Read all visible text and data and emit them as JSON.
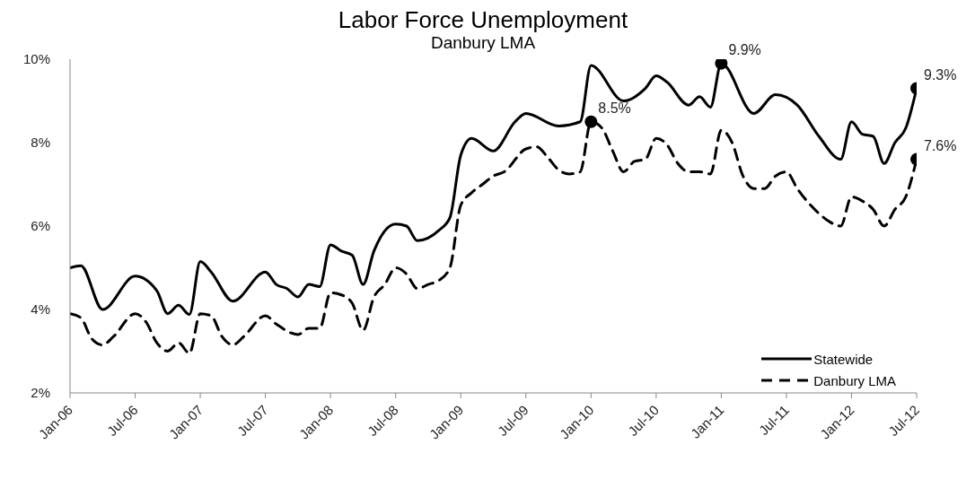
{
  "chart_data": {
    "type": "line",
    "title": "Labor Force Unemployment",
    "subtitle": "Danbury LMA",
    "xlim": [
      "2006-01",
      "2012-07"
    ],
    "xticks": [
      {
        "value": "2006-01",
        "label": "Jan-06"
      },
      {
        "value": "2006-07",
        "label": "Jul-06"
      },
      {
        "value": "2007-01",
        "label": "Jan-07"
      },
      {
        "value": "2007-07",
        "label": "Jul-07"
      },
      {
        "value": "2008-01",
        "label": "Jan-08"
      },
      {
        "value": "2008-07",
        "label": "Jul-08"
      },
      {
        "value": "2009-01",
        "label": "Jan-09"
      },
      {
        "value": "2009-07",
        "label": "Jul-09"
      },
      {
        "value": "2010-01",
        "label": "Jan-10"
      },
      {
        "value": "2010-07",
        "label": "Jul-10"
      },
      {
        "value": "2011-01",
        "label": "Jan-11"
      },
      {
        "value": "2011-07",
        "label": "Jul-11"
      },
      {
        "value": "2012-01",
        "label": "Jan-12"
      },
      {
        "value": "2012-07",
        "label": "Jul-12"
      }
    ],
    "ylim": [
      2,
      10
    ],
    "yticks": [
      {
        "value": 2,
        "label": "2%"
      },
      {
        "value": 4,
        "label": "4%"
      },
      {
        "value": 6,
        "label": "6%"
      },
      {
        "value": 8,
        "label": "8%"
      },
      {
        "value": 10,
        "label": "10%"
      }
    ],
    "grid": false,
    "legend": "bottom right",
    "marker": "none",
    "series": [
      {
        "name": "Statewide",
        "color": "#000000",
        "line_style": "solid",
        "x": [
          "2006-01",
          "2006-02",
          "2006-04",
          "2006-07",
          "2006-09",
          "2006-10",
          "2006-11",
          "2006-12",
          "2007-01",
          "2007-02",
          "2007-04",
          "2007-07",
          "2007-08",
          "2007-09",
          "2007-10",
          "2007-11",
          "2007-12",
          "2008-01",
          "2008-02",
          "2008-03",
          "2008-04",
          "2008-05",
          "2008-07",
          "2008-08",
          "2008-09",
          "2008-11",
          "2008-12",
          "2009-01",
          "2009-02",
          "2009-04",
          "2009-06",
          "2009-07",
          "2009-10",
          "2009-12",
          "2010-01",
          "2010-04",
          "2010-06",
          "2010-07",
          "2010-08",
          "2010-10",
          "2010-11",
          "2010-12",
          "2011-01",
          "2011-04",
          "2011-06",
          "2011-08",
          "2011-10",
          "2011-12",
          "2012-01",
          "2012-02",
          "2012-03",
          "2012-04",
          "2012-05",
          "2012-06",
          "2012-07"
        ],
        "values": [
          5.0,
          5.05,
          4.0,
          4.8,
          4.45,
          3.9,
          4.1,
          3.88,
          5.15,
          4.9,
          4.2,
          4.9,
          4.6,
          4.5,
          4.3,
          4.6,
          4.55,
          5.55,
          5.4,
          5.3,
          4.6,
          5.4,
          6.05,
          6.0,
          5.65,
          5.9,
          6.2,
          7.7,
          8.1,
          7.8,
          8.5,
          8.7,
          8.4,
          8.5,
          9.85,
          9.0,
          9.3,
          9.6,
          9.45,
          8.9,
          9.1,
          8.85,
          9.9,
          8.7,
          9.15,
          8.9,
          8.15,
          7.6,
          8.5,
          8.2,
          8.15,
          7.5,
          8.0,
          8.35,
          9.3
        ],
        "value_labels": [
          null,
          null,
          null,
          null,
          null,
          null,
          null,
          null,
          null,
          null,
          null,
          null,
          null,
          null,
          null,
          null,
          null,
          null,
          null,
          null,
          null,
          null,
          null,
          null,
          null,
          null,
          null,
          null,
          null,
          null,
          null,
          null,
          null,
          null,
          null,
          null,
          null,
          null,
          null,
          null,
          null,
          null,
          "9.9%",
          null,
          null,
          null,
          null,
          null,
          null,
          null,
          null,
          null,
          null,
          null,
          "9.3%"
        ]
      },
      {
        "name": "Danbury LMA",
        "color": "#000000",
        "line_style": "dashed",
        "x": [
          "2006-01",
          "2006-02",
          "2006-03",
          "2006-04",
          "2006-05",
          "2006-07",
          "2006-08",
          "2006-09",
          "2006-10",
          "2006-11",
          "2006-12",
          "2007-01",
          "2007-02",
          "2007-03",
          "2007-04",
          "2007-05",
          "2007-07",
          "2007-08",
          "2007-10",
          "2007-11",
          "2007-12",
          "2008-01",
          "2008-02",
          "2008-03",
          "2008-04",
          "2008-05",
          "2008-06",
          "2008-07",
          "2008-08",
          "2008-09",
          "2008-10",
          "2008-11",
          "2008-12",
          "2009-01",
          "2009-02",
          "2009-03",
          "2009-04",
          "2009-05",
          "2009-07",
          "2009-08",
          "2009-09",
          "2009-10",
          "2009-11",
          "2009-12",
          "2010-01",
          "2010-02",
          "2010-03",
          "2010-04",
          "2010-05",
          "2010-06",
          "2010-07",
          "2010-08",
          "2010-09",
          "2010-10",
          "2010-11",
          "2010-12",
          "2011-01",
          "2011-02",
          "2011-03",
          "2011-04",
          "2011-05",
          "2011-06",
          "2011-07",
          "2011-08",
          "2011-10",
          "2011-11",
          "2011-12",
          "2012-01",
          "2012-02",
          "2012-03",
          "2012-04",
          "2012-05",
          "2012-06",
          "2012-07"
        ],
        "values": [
          3.9,
          3.8,
          3.3,
          3.15,
          3.35,
          3.9,
          3.7,
          3.2,
          3.0,
          3.2,
          2.95,
          3.9,
          3.85,
          3.35,
          3.15,
          3.35,
          3.85,
          3.65,
          3.4,
          3.55,
          3.55,
          4.4,
          4.35,
          4.15,
          3.5,
          4.3,
          4.6,
          5.0,
          4.85,
          4.5,
          4.6,
          4.7,
          5.0,
          6.5,
          6.8,
          7.0,
          7.2,
          7.3,
          7.85,
          7.9,
          7.65,
          7.35,
          7.25,
          7.3,
          8.5,
          8.35,
          7.8,
          7.3,
          7.55,
          7.6,
          8.1,
          7.95,
          7.5,
          7.3,
          7.3,
          7.25,
          8.3,
          8.0,
          7.2,
          6.9,
          6.9,
          7.2,
          7.3,
          6.9,
          6.3,
          6.1,
          6.0,
          6.7,
          6.6,
          6.4,
          6.0,
          6.4,
          6.7,
          7.6
        ],
        "value_labels": [
          null,
          null,
          null,
          null,
          null,
          null,
          null,
          null,
          null,
          null,
          null,
          null,
          null,
          null,
          null,
          null,
          null,
          null,
          null,
          null,
          null,
          null,
          null,
          null,
          null,
          null,
          null,
          null,
          null,
          null,
          null,
          null,
          null,
          null,
          null,
          null,
          null,
          null,
          null,
          null,
          null,
          null,
          null,
          null,
          "8.5%",
          null,
          null,
          null,
          null,
          null,
          null,
          null,
          null,
          null,
          null,
          null,
          null,
          null,
          null,
          null,
          null,
          null,
          null,
          null,
          null,
          null,
          null,
          null,
          null,
          null,
          null,
          null,
          null,
          "7.6%"
        ]
      }
    ]
  }
}
